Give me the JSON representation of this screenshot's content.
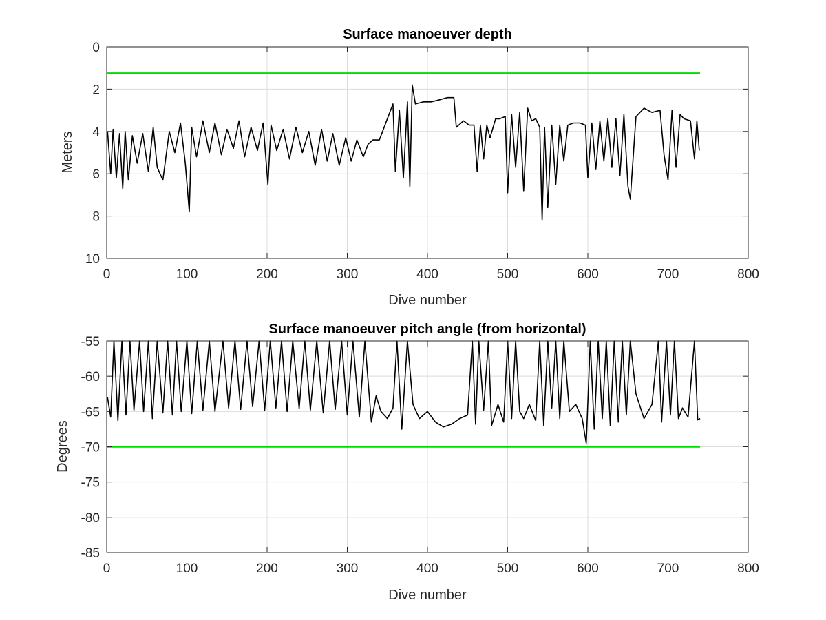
{
  "chart_data": [
    {
      "type": "line",
      "title": "Surface manoeuver depth",
      "xlabel": "Dive number",
      "ylabel": "Meters",
      "xlim": [
        0,
        800
      ],
      "ylim": [
        0,
        10
      ],
      "y_reversed": true,
      "grid": true,
      "xticks": [
        "0",
        "100",
        "200",
        "300",
        "400",
        "500",
        "600",
        "700",
        "800"
      ],
      "yticks": [
        "0",
        "2",
        "4",
        "6",
        "8",
        "10"
      ],
      "colors": {
        "data": "#000000",
        "threshold": "#00dd00",
        "grid": "#dcdcdc"
      },
      "series": [
        {
          "line_color": "#000000",
          "x": [
            1,
            5,
            8,
            12,
            16,
            20,
            23,
            27,
            32,
            38,
            45,
            52,
            58,
            63,
            70,
            78,
            85,
            92,
            98,
            103,
            106,
            112,
            120,
            128,
            135,
            143,
            150,
            158,
            165,
            172,
            180,
            188,
            195,
            201,
            205,
            212,
            220,
            228,
            236,
            244,
            252,
            260,
            268,
            275,
            282,
            290,
            298,
            305,
            312,
            320,
            326,
            332,
            340,
            346,
            352,
            357,
            360,
            365,
            370,
            375,
            378,
            381,
            385,
            395,
            405,
            415,
            425,
            433,
            436,
            445,
            452,
            458,
            462,
            466,
            470,
            474,
            478,
            485,
            490,
            497,
            500,
            505,
            510,
            515,
            520,
            525,
            530,
            535,
            540,
            543,
            546,
            550,
            555,
            560,
            565,
            570,
            575,
            582,
            590,
            597,
            600,
            605,
            610,
            615,
            620,
            625,
            630,
            635,
            640,
            645,
            650,
            653,
            660,
            670,
            680,
            690,
            695,
            700,
            705,
            710,
            715,
            720,
            728,
            733,
            736,
            739
          ],
          "y": [
            4.0,
            6.0,
            3.9,
            6.2,
            4.1,
            6.7,
            4.0,
            6.3,
            4.2,
            5.5,
            4.1,
            5.9,
            3.8,
            5.7,
            6.3,
            4.0,
            5.0,
            3.6,
            5.5,
            7.8,
            3.8,
            5.2,
            3.5,
            5.0,
            3.6,
            5.1,
            3.9,
            4.8,
            3.5,
            5.2,
            3.8,
            4.9,
            3.6,
            6.5,
            3.7,
            4.9,
            3.9,
            5.3,
            3.8,
            5.0,
            4.0,
            5.6,
            3.9,
            5.4,
            4.1,
            5.6,
            4.3,
            5.4,
            4.4,
            5.2,
            4.6,
            4.4,
            4.4,
            3.8,
            3.2,
            2.7,
            5.9,
            3.0,
            6.2,
            2.6,
            6.6,
            1.8,
            2.7,
            2.6,
            2.6,
            2.5,
            2.4,
            2.4,
            3.8,
            3.5,
            3.7,
            3.7,
            5.9,
            3.7,
            5.3,
            3.7,
            4.3,
            3.4,
            3.4,
            3.3,
            6.9,
            3.2,
            5.7,
            3.1,
            6.8,
            2.9,
            3.5,
            3.4,
            3.8,
            8.2,
            3.8,
            7.6,
            3.7,
            6.5,
            3.7,
            5.4,
            3.7,
            3.6,
            3.6,
            3.7,
            6.2,
            3.6,
            5.8,
            3.5,
            5.4,
            3.4,
            5.7,
            3.4,
            6.1,
            3.2,
            6.6,
            7.2,
            3.3,
            2.9,
            3.1,
            3.0,
            5.1,
            6.3,
            3.0,
            5.7,
            3.2,
            3.4,
            3.5,
            5.3,
            3.5,
            4.9
          ]
        },
        {
          "line_color": "#00dd00",
          "x": [
            0,
            740
          ],
          "y": [
            1.25,
            1.25
          ]
        }
      ]
    },
    {
      "type": "line",
      "title": "Surface manoeuver pitch angle (from horizontal)",
      "xlabel": "Dive number",
      "ylabel": "Degrees",
      "xlim": [
        0,
        800
      ],
      "ylim": [
        -85,
        -55
      ],
      "grid": true,
      "xticks": [
        "0",
        "100",
        "200",
        "300",
        "400",
        "500",
        "600",
        "700",
        "800"
      ],
      "yticks": [
        "-55",
        "-60",
        "-65",
        "-70",
        "-75",
        "-80",
        "-85"
      ],
      "colors": {
        "data": "#000000",
        "threshold": "#00dd00",
        "grid": "#dcdcdc"
      },
      "series": [
        {
          "line_color": "#000000",
          "x": [
            1,
            5,
            9,
            14,
            19,
            24,
            29,
            34,
            41,
            46,
            52,
            57,
            63,
            70,
            76,
            82,
            87,
            93,
            100,
            106,
            113,
            120,
            128,
            135,
            145,
            152,
            160,
            167,
            175,
            182,
            190,
            197,
            204,
            211,
            218,
            225,
            232,
            240,
            247,
            254,
            262,
            270,
            278,
            285,
            293,
            300,
            307,
            315,
            322,
            330,
            336,
            342,
            350,
            357,
            362,
            368,
            375,
            382,
            390,
            400,
            410,
            420,
            430,
            440,
            450,
            456,
            460,
            464,
            470,
            476,
            480,
            488,
            495,
            500,
            505,
            510,
            515,
            520,
            527,
            535,
            540,
            545,
            550,
            555,
            560,
            565,
            570,
            577,
            585,
            593,
            598,
            603,
            608,
            613,
            618,
            623,
            628,
            633,
            638,
            643,
            648,
            653,
            660,
            670,
            680,
            688,
            692,
            698,
            703,
            708,
            713,
            718,
            725,
            733,
            737,
            740
          ],
          "y": [
            -63.0,
            -65.8,
            -55.0,
            -66.3,
            -55.0,
            -65.5,
            -55.0,
            -64.8,
            -55.0,
            -65.0,
            -55.0,
            -66.0,
            -55.0,
            -65.2,
            -55.0,
            -65.5,
            -55.0,
            -65.0,
            -55.0,
            -65.3,
            -55.0,
            -64.8,
            -55.0,
            -65.0,
            -55.0,
            -64.5,
            -55.0,
            -64.7,
            -55.0,
            -64.3,
            -55.0,
            -64.8,
            -55.0,
            -64.5,
            -55.0,
            -65.0,
            -55.0,
            -64.6,
            -55.0,
            -64.8,
            -55.0,
            -65.2,
            -55.0,
            -64.7,
            -55.0,
            -65.5,
            -55.0,
            -65.8,
            -55.0,
            -66.5,
            -62.8,
            -65.0,
            -66.0,
            -64.5,
            -55.0,
            -67.5,
            -55.0,
            -64.0,
            -66.0,
            -65.0,
            -66.5,
            -67.2,
            -66.8,
            -66.0,
            -65.5,
            -55.0,
            -66.8,
            -55.0,
            -64.8,
            -55.0,
            -67.0,
            -64.0,
            -66.5,
            -55.0,
            -66.0,
            -55.0,
            -65.0,
            -66.0,
            -64.0,
            -66.3,
            -55.0,
            -67.0,
            -55.0,
            -64.5,
            -55.0,
            -66.0,
            -55.0,
            -65.0,
            -64.0,
            -66.0,
            -69.5,
            -55.0,
            -67.5,
            -55.0,
            -66.0,
            -55.0,
            -67.0,
            -55.0,
            -66.5,
            -55.0,
            -65.5,
            -55.0,
            -62.5,
            -66.0,
            -64.0,
            -55.0,
            -66.5,
            -55.0,
            -65.5,
            -55.0,
            -66.0,
            -64.5,
            -65.8,
            -55.0,
            -66.2,
            -66.0
          ]
        },
        {
          "line_color": "#00dd00",
          "x": [
            0,
            740
          ],
          "y": [
            -70,
            -70
          ]
        }
      ]
    }
  ]
}
